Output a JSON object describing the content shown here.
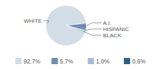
{
  "chart_data": {
    "type": "pie",
    "categories": [
      "WHITE",
      "A.I.",
      "HISPANIC",
      "BLACK"
    ],
    "values": [
      92.7,
      5.7,
      1.0,
      0.6
    ],
    "value_labels": [
      "92.7%",
      "5.7%",
      "1.0%",
      "0.6%"
    ],
    "colors": [
      "#d3dde8",
      "#6f8db0",
      "#a7bdd3",
      "#2f5f86"
    ],
    "legend": "bottom"
  }
}
